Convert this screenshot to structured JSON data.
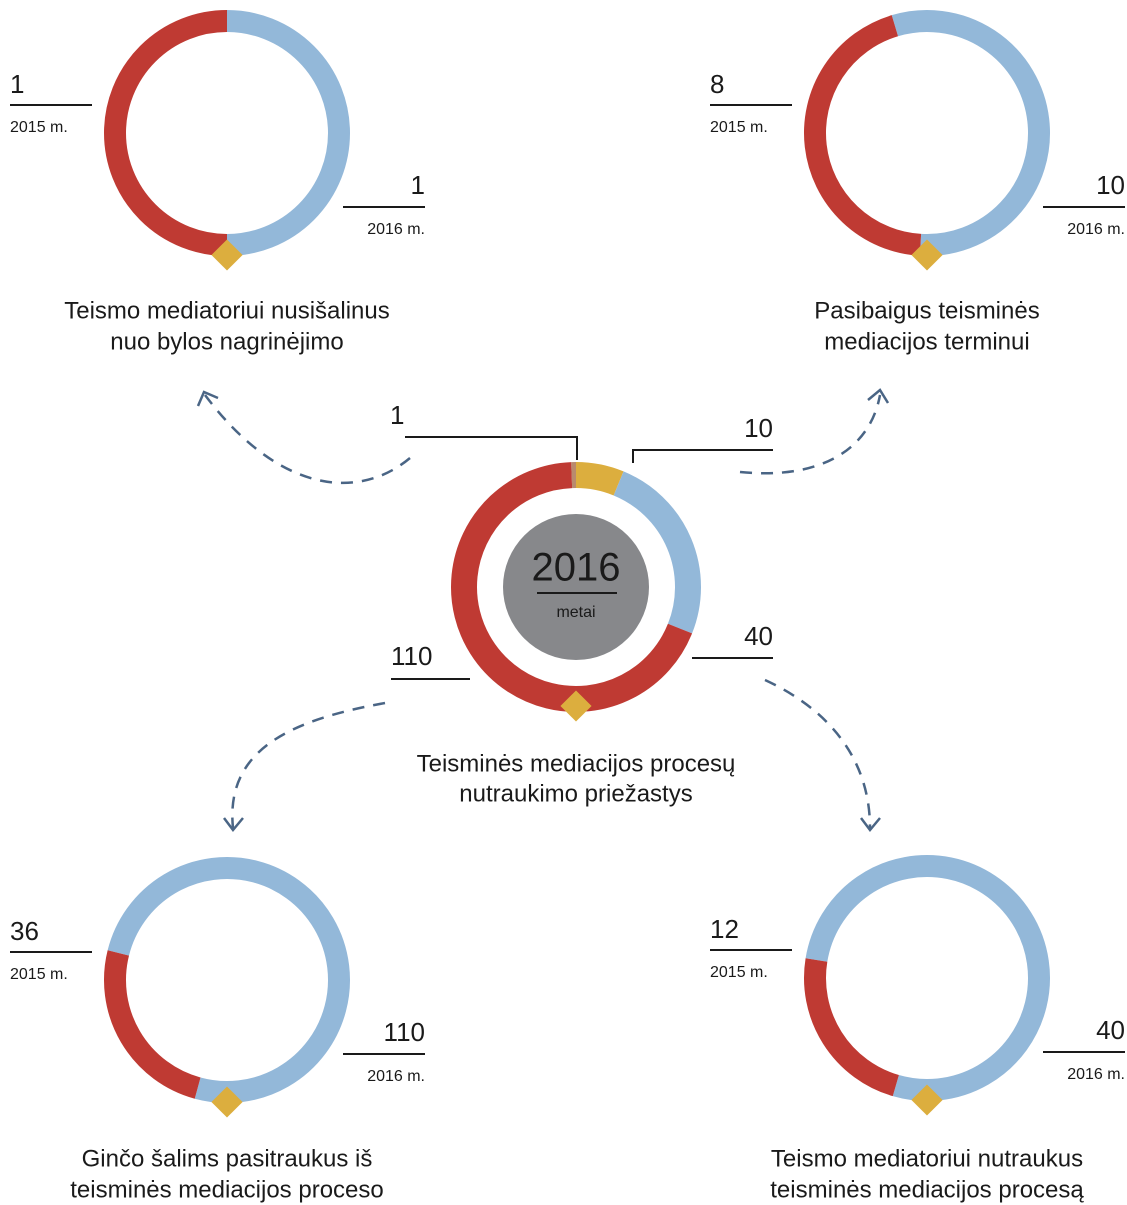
{
  "chart_data": {
    "type": "donut",
    "center": {
      "year_label": "2016",
      "sub_label": "metai",
      "title_lines": [
        "Teisminės mediacijos procesų",
        "nutraukimo priežastys"
      ],
      "values": [
        1,
        10,
        40,
        110
      ],
      "colors": [
        "#b98a6e",
        "#dcae3e",
        "#93b8d9",
        "#bf3a33"
      ]
    },
    "panels": [
      {
        "title_lines": [
          "Teismo mediatoriui nusišalinus",
          "nuo bylos nagrinėjimo"
        ],
        "series": [
          {
            "name": "2015 m.",
            "color": "#bf3a33",
            "value": 1
          },
          {
            "name": "2016 m.",
            "color": "#93b8d9",
            "value": 1
          }
        ]
      },
      {
        "title_lines": [
          "Pasibaigus teisminės",
          "mediacijos terminui"
        ],
        "series": [
          {
            "name": "2015 m.",
            "color": "#bf3a33",
            "value": 8
          },
          {
            "name": "2016 m.",
            "color": "#93b8d9",
            "value": 10
          }
        ]
      },
      {
        "title_lines": [
          "Ginčo šalims pasitraukus iš",
          "teisminės mediacijos proceso"
        ],
        "series": [
          {
            "name": "2015 m.",
            "color": "#bf3a33",
            "value": 36
          },
          {
            "name": "2016 m.",
            "color": "#93b8d9",
            "value": 110
          }
        ]
      },
      {
        "title_lines": [
          "Teismo mediatoriui nutraukus",
          "teisminės mediacijos procesą"
        ],
        "series": [
          {
            "name": "2015 m.",
            "color": "#bf3a33",
            "value": 12
          },
          {
            "name": "2016 m.",
            "color": "#93b8d9",
            "value": 40
          }
        ]
      }
    ]
  }
}
